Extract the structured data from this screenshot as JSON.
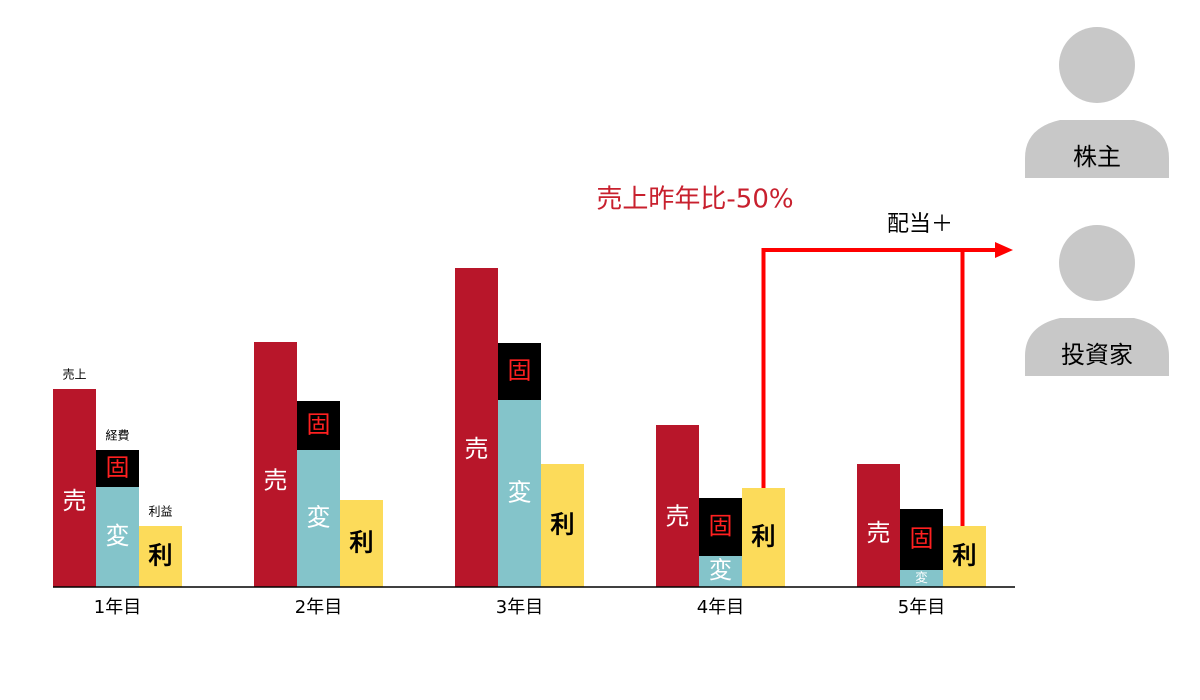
{
  "chart_data": {
    "type": "bar",
    "categories": [
      "1年目",
      "2年目",
      "3年目",
      "4年目",
      "5年目"
    ],
    "series": [
      {
        "name": "売上",
        "label": "売",
        "color": "#b8162a",
        "values": [
          198,
          245,
          319,
          162,
          123
        ]
      },
      {
        "label": "変",
        "color": "#84c4ca",
        "values": [
          100,
          137,
          187,
          31,
          17
        ]
      },
      {
        "name": "経費",
        "label": "固",
        "color": "#000000",
        "values": [
          37,
          49,
          57,
          58,
          61
        ]
      },
      {
        "name": "利益",
        "label": "利",
        "color": "#fcdb5a",
        "values": [
          61,
          87,
          123,
          99,
          61
        ]
      }
    ],
    "ylim": [
      0,
      330
    ],
    "annotations": [
      {
        "text": "売上昨年比-50%",
        "color": "#c8202e"
      },
      {
        "text": "配当＋",
        "color": "#000000"
      }
    ],
    "arrow_color": "#ff0000",
    "people": [
      "株主",
      "投資家"
    ]
  }
}
